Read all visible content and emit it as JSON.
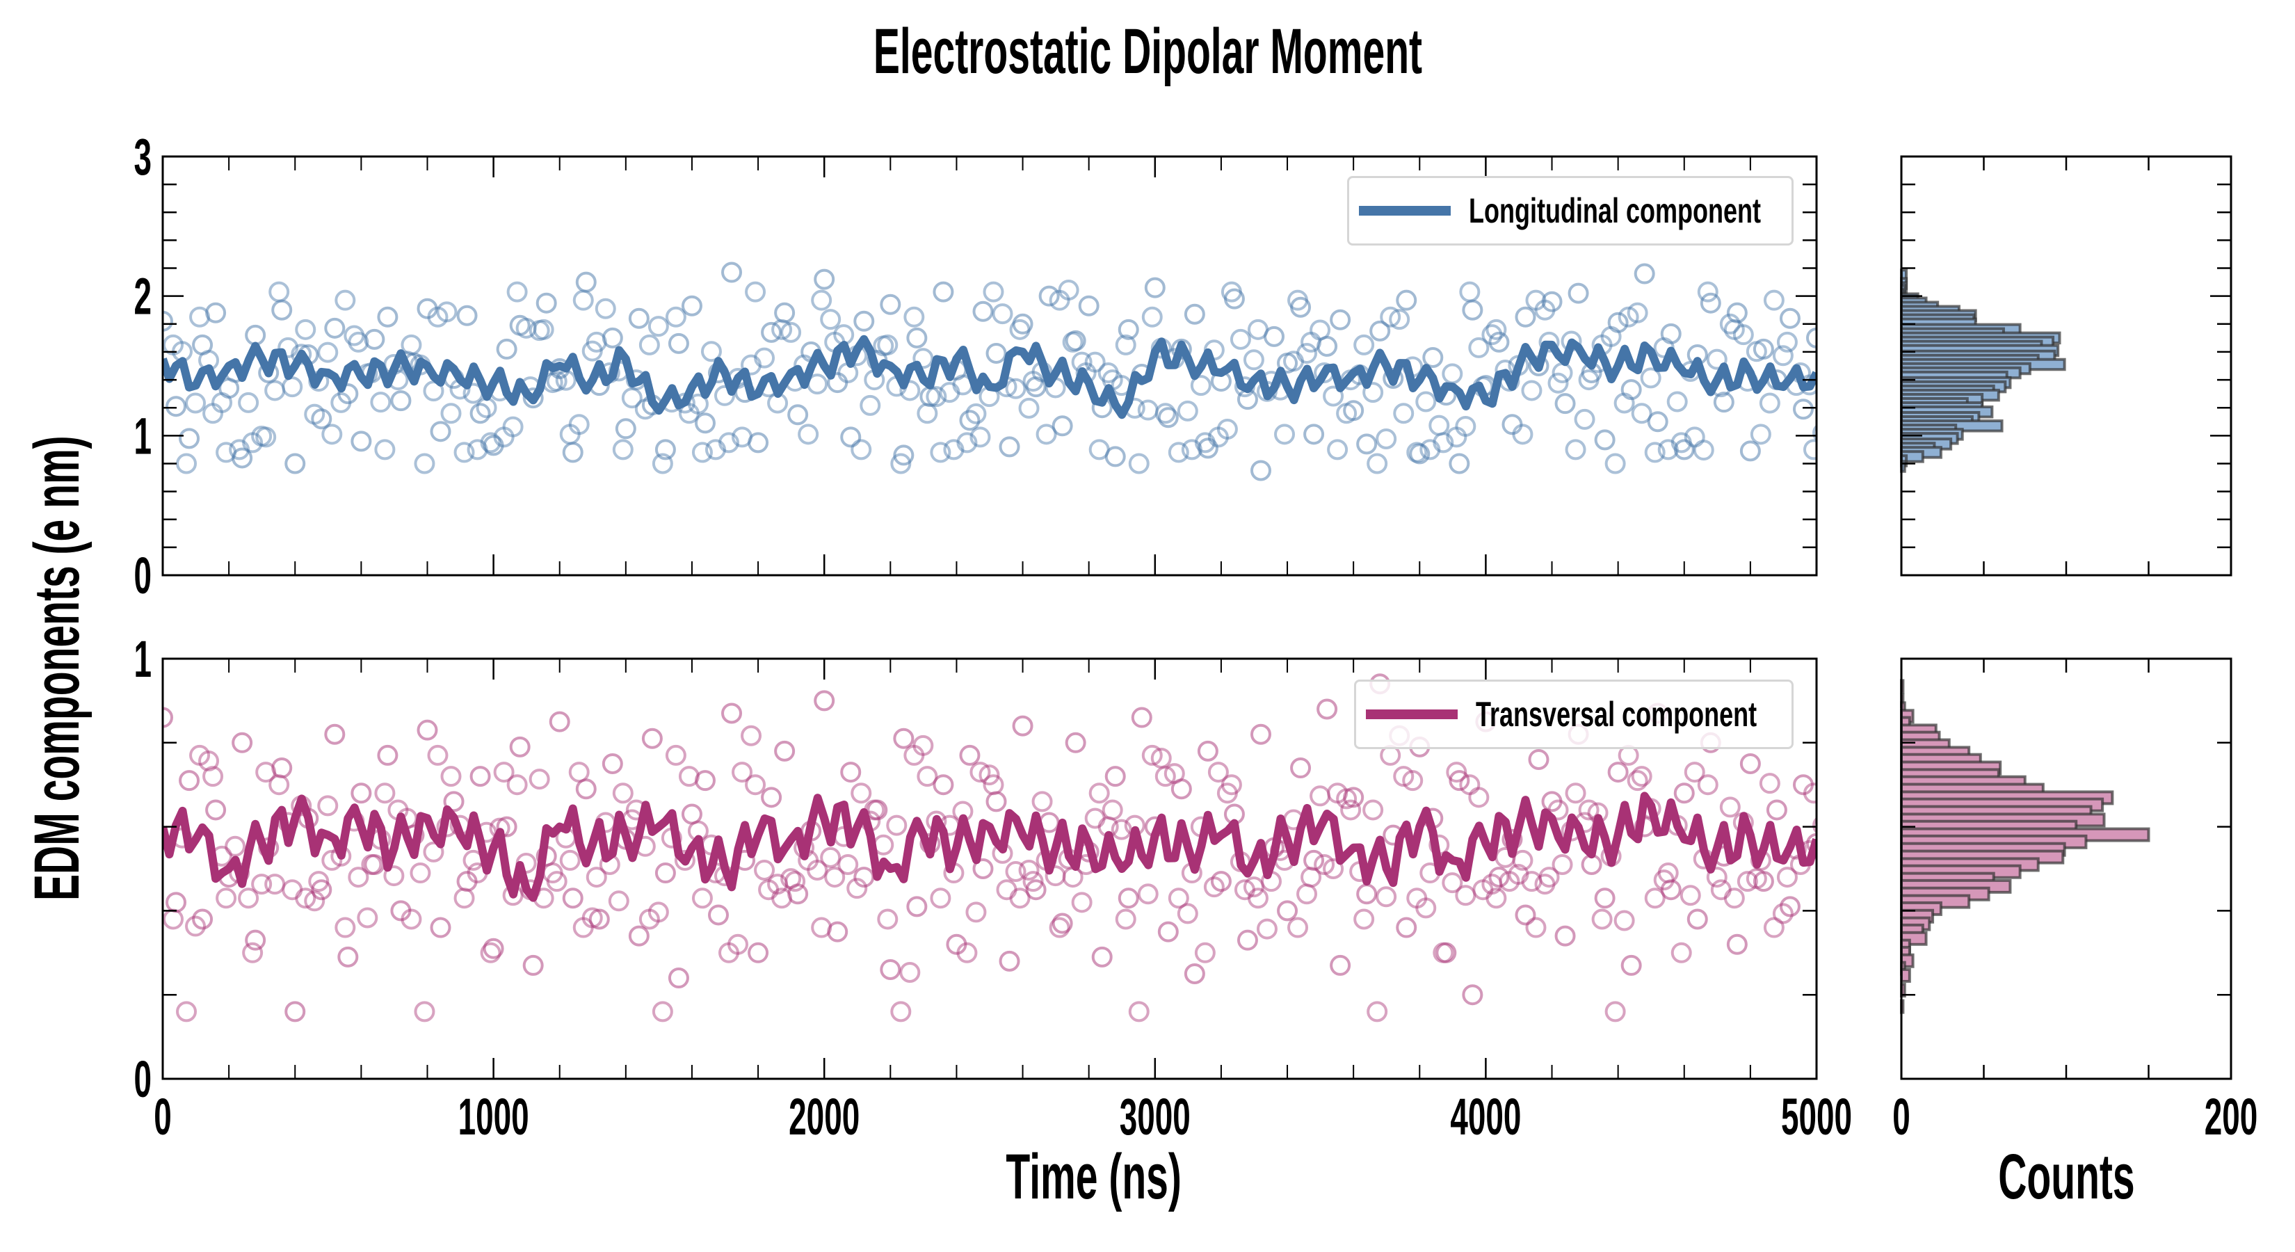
{
  "chart_data": [
    {
      "type": "scatter",
      "panel": "top-timeseries",
      "title": "Electrostatic Dipolar Moment",
      "xlabel": "Time (ns)",
      "ylabel": "EDM components (e nm)",
      "xlim": [
        0,
        5000
      ],
      "ylim": [
        0,
        3
      ],
      "xticks": [
        0,
        1000,
        2000,
        3000,
        4000,
        5000
      ],
      "xtick_labels": [
        "0",
        "1000",
        "2000",
        "3000",
        "4000",
        "5000"
      ],
      "yticks": [
        0,
        1,
        2,
        3
      ],
      "ytick_labels": [
        "0",
        "1",
        "2",
        "3"
      ],
      "legend": {
        "label": "Longitudinal component",
        "position": "top-right"
      },
      "color": "#4575a8",
      "series": [
        {
          "name": "Longitudinal component (running average)",
          "kind": "line",
          "x": [
            0,
            100,
            200,
            300,
            400,
            500,
            600,
            700,
            800,
            900,
            1000,
            1100,
            1200,
            1300,
            1400,
            1500,
            1600,
            1700,
            1800,
            1900,
            2000,
            2100,
            2200,
            2300,
            2400,
            2500,
            2600,
            2700,
            2800,
            2900,
            3000,
            3100,
            3200,
            3300,
            3400,
            3500,
            3600,
            3700,
            3800,
            3900,
            4000,
            4100,
            4200,
            4300,
            4400,
            4500,
            4600,
            4700,
            4800,
            4900,
            5000
          ],
          "y": [
            1.55,
            1.36,
            1.5,
            1.55,
            1.5,
            1.45,
            1.42,
            1.48,
            1.5,
            1.4,
            1.38,
            1.3,
            1.5,
            1.4,
            1.55,
            1.18,
            1.35,
            1.45,
            1.3,
            1.45,
            1.5,
            1.62,
            1.5,
            1.4,
            1.55,
            1.35,
            1.6,
            1.45,
            1.38,
            1.15,
            1.6,
            1.55,
            1.45,
            1.4,
            1.35,
            1.4,
            1.45,
            1.5,
            1.4,
            1.35,
            1.25,
            1.5,
            1.65,
            1.55,
            1.5,
            1.6,
            1.45,
            1.4,
            1.45,
            1.35,
            1.45
          ]
        },
        {
          "name": "Longitudinal component (raw)",
          "kind": "scatter",
          "x": [
            0,
            40,
            80,
            120,
            160,
            200,
            240,
            280,
            320,
            360,
            400,
            440,
            480,
            520,
            560,
            600,
            640,
            680,
            720,
            760,
            800,
            840,
            880,
            920,
            960,
            1000,
            1040,
            1080,
            1120,
            1160,
            1200,
            1240,
            1280,
            1320,
            1360,
            1400,
            1440,
            1480,
            1520,
            1560,
            1600,
            1640,
            1680,
            1720,
            1760,
            1800,
            1840,
            1880,
            1920,
            1960,
            2000,
            2040,
            2080,
            2120,
            2160,
            2200,
            2240,
            2280,
            2320,
            2360,
            2400,
            2440,
            2480,
            2520,
            2560,
            2600,
            2640,
            2680,
            2720,
            2760,
            2800,
            2840,
            2880,
            2920,
            2960,
            3000,
            3040,
            3080,
            3120,
            3160,
            3200,
            3240,
            3280,
            3320,
            3360,
            3400,
            3440,
            3480,
            3520,
            3560,
            3600,
            3640,
            3680,
            3720,
            3760,
            3800,
            3840,
            3880,
            3920,
            3960,
            4000,
            4040,
            4080,
            4120,
            4160,
            4200,
            4240,
            4280,
            4320,
            4360,
            4400,
            4440,
            4480,
            4520,
            4560,
            4600,
            4640,
            4680,
            4720,
            4760,
            4800,
            4840,
            4880,
            4920,
            4960,
            5000
          ],
          "y": [
            1.82,
            1.21,
            0.98,
            1.65,
            1.88,
            1.34,
            0.84,
            1.72,
            1.45,
            1.9,
            0.8,
            1.58,
            1.12,
            1.77,
            1.3,
            0.96,
            1.69,
            1.85,
            1.25,
            1.52,
            1.91,
            1.03,
            1.41,
            1.86,
            1.16,
            0.93,
            1.62,
            1.79,
            1.27,
            1.95,
            1.48,
            0.88,
            2.1,
            1.36,
            1.7,
            1.05,
            1.84,
            1.22,
            0.9,
            1.66,
            1.93,
            1.09,
            1.45,
            2.17,
            1.31,
            0.95,
            1.74,
            1.88,
            1.15,
            1.6,
            2.12,
            1.38,
            0.99,
            1.82,
            1.54,
            1.94,
            0.86,
            1.7,
            1.28,
            2.03,
            1.47,
            1.11,
            1.89,
            1.59,
            0.92,
            1.8,
            1.35,
            2.0,
            1.07,
            1.68,
            1.93,
            1.2,
            0.85,
            1.76,
            1.44,
            2.06,
            1.13,
            1.62,
            1.87,
            0.91,
            1.39,
            1.98,
            1.26,
            0.75,
            1.71,
            1.52,
            1.92,
            1.01,
            1.64,
            1.83,
            1.18,
            0.94,
            1.75,
            1.41,
            1.97,
            0.87,
            1.56,
            1.29,
            0.8,
            1.9,
            1.36,
            1.67,
            1.08,
            1.85,
            1.5,
            1.96,
            1.23,
            2.02,
            1.45,
            0.97,
            1.81,
            1.33,
            2.16,
            1.1,
            1.73,
            0.9,
            1.58,
            1.95,
            1.24,
            1.88,
            0.89,
            1.62,
            1.4,
            1.84,
            1.19,
            1.7
          ]
        }
      ]
    },
    {
      "type": "scatter",
      "panel": "bottom-timeseries",
      "xlabel": "Time (ns)",
      "xlim": [
        0,
        5000
      ],
      "ylim": [
        0,
        1
      ],
      "yticks": [
        0,
        1
      ],
      "ytick_labels": [
        "0",
        "1"
      ],
      "legend": {
        "label": "Transversal component",
        "position": "top-right"
      },
      "color": "#a83275",
      "series": [
        {
          "name": "Transversal component (running average)",
          "kind": "line",
          "x": [
            0,
            100,
            200,
            300,
            400,
            500,
            600,
            700,
            800,
            900,
            1000,
            1100,
            1200,
            1300,
            1400,
            1500,
            1600,
            1700,
            1800,
            1900,
            2000,
            2100,
            2200,
            2300,
            2400,
            2500,
            2600,
            2700,
            2800,
            2900,
            3000,
            3100,
            3200,
            3300,
            3400,
            3500,
            3600,
            3700,
            3800,
            3900,
            4000,
            4100,
            4200,
            4300,
            4400,
            4500,
            4600,
            4700,
            4800,
            4900,
            5000
          ],
          "y": [
            0.6,
            0.57,
            0.5,
            0.56,
            0.62,
            0.58,
            0.6,
            0.55,
            0.62,
            0.58,
            0.55,
            0.45,
            0.6,
            0.56,
            0.58,
            0.6,
            0.55,
            0.5,
            0.58,
            0.57,
            0.62,
            0.6,
            0.5,
            0.58,
            0.55,
            0.6,
            0.58,
            0.55,
            0.56,
            0.5,
            0.58,
            0.55,
            0.58,
            0.52,
            0.57,
            0.6,
            0.55,
            0.5,
            0.6,
            0.52,
            0.56,
            0.6,
            0.62,
            0.55,
            0.58,
            0.65,
            0.57,
            0.55,
            0.58,
            0.52,
            0.57
          ]
        },
        {
          "name": "Transversal component (raw)",
          "kind": "scatter",
          "x": [
            0,
            40,
            80,
            120,
            160,
            200,
            240,
            280,
            320,
            360,
            400,
            440,
            480,
            520,
            560,
            600,
            640,
            680,
            720,
            760,
            800,
            840,
            880,
            920,
            960,
            1000,
            1040,
            1080,
            1120,
            1160,
            1200,
            1240,
            1280,
            1320,
            1360,
            1400,
            1440,
            1480,
            1520,
            1560,
            1600,
            1640,
            1680,
            1720,
            1760,
            1800,
            1840,
            1880,
            1920,
            1960,
            2000,
            2040,
            2080,
            2120,
            2160,
            2200,
            2240,
            2280,
            2320,
            2360,
            2400,
            2440,
            2480,
            2520,
            2560,
            2600,
            2640,
            2680,
            2720,
            2760,
            2800,
            2840,
            2880,
            2920,
            2960,
            3000,
            3040,
            3080,
            3120,
            3160,
            3200,
            3240,
            3280,
            3320,
            3360,
            3400,
            3440,
            3480,
            3520,
            3560,
            3600,
            3640,
            3680,
            3720,
            3760,
            3800,
            3840,
            3880,
            3920,
            3960,
            4000,
            4040,
            4080,
            4120,
            4160,
            4200,
            4240,
            4280,
            4320,
            4360,
            4400,
            4440,
            4480,
            4520,
            4560,
            4600,
            4640,
            4680,
            4720,
            4760,
            4800,
            4840,
            4880,
            4920,
            4960,
            5000
          ],
          "y": [
            0.86,
            0.42,
            0.71,
            0.38,
            0.64,
            0.48,
            0.8,
            0.33,
            0.55,
            0.74,
            0.16,
            0.62,
            0.45,
            0.82,
            0.29,
            0.68,
            0.51,
            0.77,
            0.4,
            0.58,
            0.83,
            0.36,
            0.66,
            0.47,
            0.72,
            0.31,
            0.6,
            0.79,
            0.27,
            0.53,
            0.85,
            0.43,
            0.69,
            0.38,
            0.75,
            0.57,
            0.34,
            0.81,
            0.49,
            0.24,
            0.63,
            0.71,
            0.39,
            0.87,
            0.52,
            0.3,
            0.67,
            0.78,
            0.44,
            0.59,
            0.9,
            0.35,
            0.73,
            0.48,
            0.64,
            0.26,
            0.81,
            0.41,
            0.56,
            0.7,
            0.32,
            0.77,
            0.5,
            0.66,
            0.28,
            0.84,
            0.45,
            0.61,
            0.37,
            0.8,
            0.54,
            0.29,
            0.72,
            0.43,
            0.86,
            0.6,
            0.35,
            0.69,
            0.25,
            0.78,
            0.47,
            0.63,
            0.33,
            0.82,
            0.55,
            0.4,
            0.74,
            0.52,
            0.88,
            0.27,
            0.67,
            0.44,
            0.94,
            0.58,
            0.36,
            0.79,
            0.62,
            0.3,
            0.71,
            0.2,
            0.85,
            0.48,
            0.57,
            0.39,
            0.76,
            0.66,
            0.34,
            0.82,
            0.51,
            0.43,
            0.73,
            0.27,
            0.6,
            0.87,
            0.45,
            0.68,
            0.38,
            0.8,
            0.53,
            0.32,
            0.75,
            0.47,
            0.64,
            0.41,
            0.7,
            0.56
          ]
        }
      ]
    },
    {
      "type": "bar",
      "orientation": "horizontal",
      "panel": "top-histogram",
      "xlabel": "Counts",
      "xlim": [
        0,
        200
      ],
      "xticks": [
        0,
        200
      ],
      "xtick_labels": [
        "0",
        "200"
      ],
      "ylim": [
        0,
        3
      ],
      "color": "#8fb0d3",
      "edgecolor": "#333333",
      "bin_centers": [
        2.15,
        2.09,
        2.06,
        2.04,
        2.01,
        1.98,
        1.95,
        1.92,
        1.89,
        1.86,
        1.83,
        1.8,
        1.76,
        1.73,
        1.7,
        1.67,
        1.64,
        1.61,
        1.57,
        1.54,
        1.51,
        1.48,
        1.45,
        1.42,
        1.38,
        1.35,
        1.32,
        1.29,
        1.26,
        1.23,
        1.2,
        1.17,
        1.13,
        1.1,
        1.07,
        1.04,
        1.01,
        0.98,
        0.94,
        0.91,
        0.88,
        0.85,
        0.82,
        0.78
      ],
      "counts": [
        3,
        3,
        3,
        2,
        1,
        10,
        15,
        22,
        35,
        45,
        44,
        45,
        72,
        62,
        96,
        92,
        85,
        95,
        93,
        83,
        99,
        78,
        72,
        64,
        66,
        63,
        56,
        59,
        49,
        40,
        49,
        55,
        47,
        43,
        61,
        33,
        37,
        34,
        30,
        20,
        24,
        13,
        3,
        2
      ]
    },
    {
      "type": "bar",
      "orientation": "horizontal",
      "panel": "bottom-histogram",
      "xlabel": "Counts",
      "xlim": [
        0,
        200
      ],
      "xticks": [
        0,
        200
      ],
      "xtick_labels": [
        "0",
        "200"
      ],
      "ylim": [
        0,
        1
      ],
      "color": "#d697b9",
      "edgecolor": "#333333",
      "bin_centers": [
        0.934,
        0.9,
        0.881,
        0.863,
        0.846,
        0.828,
        0.811,
        0.793,
        0.775,
        0.758,
        0.74,
        0.722,
        0.705,
        0.687,
        0.669,
        0.652,
        0.634,
        0.616,
        0.599,
        0.581,
        0.564,
        0.546,
        0.528,
        0.51,
        0.493,
        0.475,
        0.458,
        0.44,
        0.422,
        0.405,
        0.387,
        0.369,
        0.352,
        0.334,
        0.316,
        0.299,
        0.281,
        0.263,
        0.246,
        0.211,
        0.172
      ],
      "counts": [
        1,
        1,
        2,
        7,
        5,
        21,
        23,
        29,
        41,
        48,
        60,
        59,
        75,
        86,
        128,
        122,
        115,
        123,
        106,
        150,
        112,
        99,
        98,
        83,
        72,
        56,
        66,
        53,
        41,
        24,
        19,
        17,
        13,
        15,
        5,
        5,
        7,
        2,
        5,
        2,
        1
      ]
    }
  ]
}
